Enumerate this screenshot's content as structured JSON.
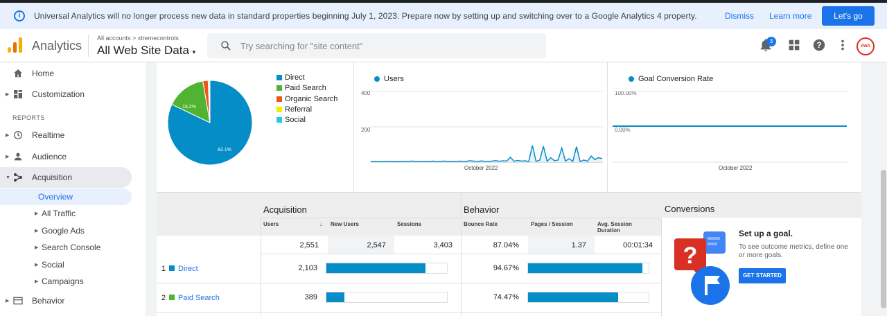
{
  "banner": {
    "message": "Universal Analytics will no longer process new data in standard properties beginning July 1, 2023. Prepare now by setting up and switching over to a Google Analytics 4 property.",
    "dismiss": "Dismiss",
    "learn_more": "Learn more",
    "cta": "Let's go"
  },
  "header": {
    "app_name": "Analytics",
    "breadcrumb": "All accounts > xtremecontrols",
    "property": "All Web Site Data",
    "search_placeholder": "Try searching for \"site content\"",
    "notification_count": "3",
    "avatar_text": "AWA"
  },
  "sidebar": {
    "home": "Home",
    "customization": "Customization",
    "reports_heading": "REPORTS",
    "realtime": "Realtime",
    "audience": "Audience",
    "acquisition": "Acquisition",
    "overview": "Overview",
    "all_traffic": "All Traffic",
    "google_ads": "Google Ads",
    "search_console": "Search Console",
    "social": "Social",
    "campaigns": "Campaigns",
    "behavior": "Behavior"
  },
  "pie": {
    "legend": [
      {
        "name": "Direct",
        "color": "#058dc7"
      },
      {
        "name": "Paid Search",
        "color": "#50b432"
      },
      {
        "name": "Organic Search",
        "color": "#ed561b"
      },
      {
        "name": "Referral",
        "color": "#edef00"
      },
      {
        "name": "Social",
        "color": "#24cbe5"
      }
    ],
    "direct_label": "82.1%",
    "paid_label": "15.2%"
  },
  "chart_data": [
    {
      "type": "pie",
      "categories": [
        "Direct",
        "Paid Search",
        "Organic Search",
        "Referral",
        "Social"
      ],
      "values": [
        82.1,
        15.2,
        2.0,
        0.4,
        0.3
      ]
    },
    {
      "type": "line",
      "series": [
        {
          "name": "Users",
          "values": [
            3,
            4,
            3,
            3,
            5,
            4,
            3,
            4,
            3,
            5,
            4,
            6,
            5,
            4,
            3,
            5,
            4,
            6,
            3,
            5,
            6,
            4,
            5,
            3,
            6,
            4,
            5,
            8,
            6,
            4,
            7,
            5,
            4,
            6,
            9,
            5,
            8,
            6,
            28,
            5,
            10,
            6,
            8,
            3,
            95,
            4,
            12,
            90,
            5,
            25,
            8,
            12,
            80,
            6,
            20,
            4,
            88,
            3,
            12,
            5,
            35,
            15,
            25,
            20
          ]
        }
      ],
      "ylim": [
        0,
        400
      ],
      "yticks": [
        "400",
        "200"
      ],
      "xlabel": "October 2022"
    },
    {
      "type": "line",
      "series": [
        {
          "name": "Goal Conversion Rate",
          "values": [
            0,
            0
          ]
        }
      ],
      "yticks": [
        "100.00%",
        "0.00%"
      ],
      "xlabel": "October 2022"
    }
  ],
  "line_chart": {
    "legend": "Users",
    "y400": "400",
    "y200": "200",
    "xlabel": "October 2022"
  },
  "goal_chart": {
    "legend": "Goal Conversion Rate",
    "y100": "100.00%",
    "y0": "0.00%",
    "xlabel": "October 2022"
  },
  "table": {
    "acquisition": "Acquisition",
    "behavior": "Behavior",
    "conversions": "Conversions",
    "cols": {
      "users": "Users",
      "new_users": "New Users",
      "sessions": "Sessions",
      "bounce_rate": "Bounce Rate",
      "pages_session": "Pages / Session",
      "avg_duration_1": "Avg. Session",
      "avg_duration_2": "Duration"
    },
    "totals": {
      "users": "2,551",
      "new_users": "2,547",
      "sessions": "3,403",
      "bounce_rate": "87.04%",
      "pages_session": "1.37",
      "avg_duration": "00:01:34"
    },
    "rows": [
      {
        "rank": "1",
        "channel": "Direct",
        "users": "2,103",
        "bounce": "94.67%",
        "color": "#058dc7",
        "users_fraction": 0.82,
        "bounce_fraction": 0.9467
      },
      {
        "rank": "2",
        "channel": "Paid Search",
        "users": "389",
        "bounce": "74.47%",
        "color": "#50b432",
        "users_fraction": 0.152,
        "bounce_fraction": 0.7447
      }
    ]
  },
  "goal": {
    "title": "Set up a goal.",
    "desc": "To see outcome metrics, define one or more goals.",
    "button": "GET STARTED"
  }
}
